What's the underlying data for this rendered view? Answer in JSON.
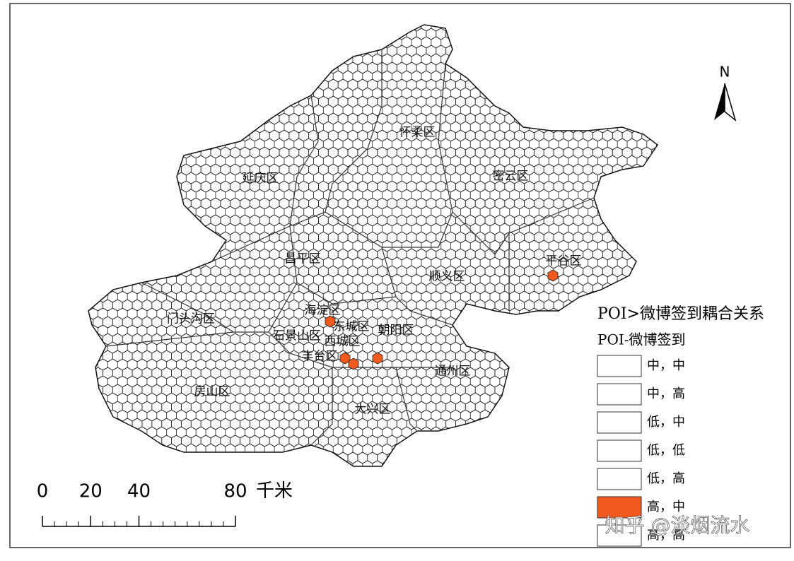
{
  "districts": [
    {
      "label": "怀柔区"
    },
    {
      "label": "密云区"
    },
    {
      "label": "延庆区"
    },
    {
      "label": "昌平区"
    },
    {
      "label": "顺义区"
    },
    {
      "label": "平谷区"
    },
    {
      "label": "海淀区"
    },
    {
      "label": "门头沟区"
    },
    {
      "label": "东城区"
    },
    {
      "label": "朝阳区"
    },
    {
      "label": "石景山区"
    },
    {
      "label": "西城区"
    },
    {
      "label": "丰台区"
    },
    {
      "label": "通州区"
    },
    {
      "label": "房山区"
    },
    {
      "label": "大兴区"
    }
  ],
  "legend": {
    "title": "POI>微博签到耦合关系",
    "subtitle": "POI-微博签到",
    "items": [
      {
        "label": "中，中",
        "color": "#ffffff"
      },
      {
        "label": "中，高",
        "color": "#ffffff"
      },
      {
        "label": "低，中",
        "color": "#ffffff"
      },
      {
        "label": "低，低",
        "color": "#ffffff"
      },
      {
        "label": "低，高",
        "color": "#ffffff"
      },
      {
        "label": "高，中",
        "color": "#f05a1e"
      },
      {
        "label": "高，高",
        "color": "#ffffff"
      }
    ]
  },
  "scale_bar": {
    "ticks": [
      0,
      20,
      40,
      80
    ],
    "unit": "千米"
  },
  "north_label": "N",
  "watermark": "知乎 @淡烟流水"
}
